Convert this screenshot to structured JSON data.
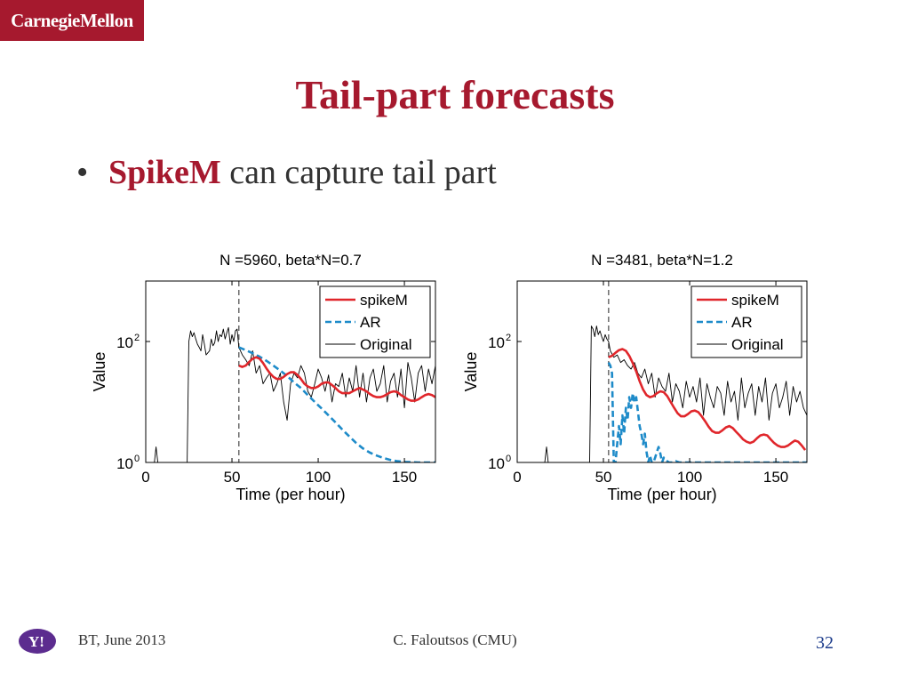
{
  "header": {
    "logo_text": "CarnegieMellon"
  },
  "slide": {
    "title": "Tail-part forecasts",
    "bullet": {
      "keyword": "SpikeM",
      "text": " can capture tail part"
    }
  },
  "footer": {
    "logo_text": "Y!",
    "left": "BT, June 2013",
    "center": "C. Faloutsos (CMU)",
    "page_number": "32"
  },
  "colors": {
    "brand": "#A6192E",
    "spikeM": "#E0262B",
    "AR": "#1E8BC9",
    "original": "#000000"
  },
  "chart_data": [
    {
      "type": "line",
      "title": "N =5960, beta*N=0.7",
      "xlabel": "Time (per hour)",
      "ylabel": "Value",
      "xlim": [
        0,
        168
      ],
      "ylim_log10": [
        0,
        3
      ],
      "yscale": "log",
      "xticks": [
        0,
        50,
        100,
        150
      ],
      "yticks_log10": [
        0,
        2
      ],
      "ytick_labels": [
        "10",
        "10"
      ],
      "ytick_exponents": [
        "0",
        "2"
      ],
      "legend_position": "top-right",
      "legend": [
        "spikeM",
        "AR",
        "Original"
      ],
      "vline_x": 54,
      "series": [
        {
          "name": "spikeM",
          "style": "solid",
          "x": [
            54,
            56,
            58,
            60,
            62,
            64,
            66,
            68,
            70,
            72,
            74,
            76,
            78,
            80,
            82,
            84,
            86,
            88,
            90,
            92,
            94,
            96,
            98,
            100,
            102,
            104,
            106,
            108,
            110,
            112,
            114,
            116,
            118,
            120,
            122,
            124,
            126,
            128,
            130,
            132,
            134,
            136,
            138,
            140,
            142,
            144,
            146,
            148,
            150,
            152,
            154,
            156,
            158,
            160,
            162,
            164,
            166,
            168
          ],
          "y": [
            40,
            38,
            40,
            46,
            52,
            55,
            52,
            44,
            36,
            30,
            26,
            24,
            24,
            26,
            29,
            31,
            31,
            28,
            24,
            20,
            18,
            17,
            17,
            18,
            20,
            21,
            21,
            19,
            17,
            15,
            14,
            14,
            14,
            15,
            16,
            17,
            16,
            15,
            13.5,
            12.5,
            12,
            12,
            12.5,
            13.5,
            14.5,
            15,
            14.5,
            13,
            12,
            11,
            10.5,
            10.5,
            11,
            12,
            13,
            13.5,
            13,
            12
          ]
        },
        {
          "name": "AR",
          "style": "dashed",
          "x": [
            54,
            58,
            62,
            66,
            70,
            74,
            78,
            82,
            86,
            90,
            94,
            98,
            102,
            106,
            110,
            114,
            118,
            122,
            126,
            130,
            134,
            138,
            142,
            146,
            150,
            154,
            158,
            162,
            166,
            168
          ],
          "y": [
            80,
            72,
            64,
            56,
            48,
            40,
            33,
            27,
            21,
            17,
            13,
            10,
            7.8,
            6,
            4.6,
            3.5,
            2.7,
            2.1,
            1.7,
            1.45,
            1.3,
            1.18,
            1.1,
            1.05,
            1.02,
            1.01,
            1.0,
            1.0,
            1.0,
            1.0
          ]
        },
        {
          "name": "Original",
          "style": "solid",
          "x": [
            0,
            3,
            5,
            6,
            7,
            8,
            10,
            15,
            20,
            22,
            24,
            25,
            26,
            27,
            28,
            29,
            30,
            31,
            32,
            33,
            34,
            35,
            36,
            37,
            38,
            39,
            40,
            41,
            42,
            43,
            44,
            45,
            46,
            47,
            48,
            49,
            50,
            51,
            52,
            53,
            54,
            56,
            58,
            60,
            62,
            64,
            66,
            68,
            70,
            72,
            74,
            76,
            78,
            80,
            82,
            84,
            86,
            88,
            90,
            92,
            94,
            96,
            98,
            100,
            102,
            104,
            106,
            108,
            110,
            112,
            114,
            116,
            118,
            120,
            122,
            124,
            126,
            128,
            130,
            132,
            134,
            136,
            138,
            140,
            142,
            144,
            146,
            148,
            150,
            152,
            154,
            156,
            158,
            160,
            162,
            164,
            166,
            168
          ],
          "y": [
            1,
            1,
            1,
            1.8,
            1,
            1,
            1,
            1,
            1,
            1,
            1,
            100,
            150,
            120,
            140,
            110,
            90,
            80,
            70,
            130,
            90,
            60,
            65,
            70,
            110,
            85,
            95,
            150,
            100,
            130,
            120,
            160,
            110,
            140,
            170,
            90,
            130,
            100,
            150,
            160,
            80,
            60,
            50,
            40,
            70,
            30,
            40,
            20,
            25,
            30,
            15,
            20,
            30,
            10,
            5,
            20,
            30,
            25,
            40,
            30,
            15,
            12,
            20,
            35,
            25,
            15,
            28,
            10,
            20,
            18,
            30,
            12,
            25,
            15,
            40,
            12,
            30,
            10,
            25,
            35,
            15,
            20,
            40,
            10,
            22,
            30,
            12,
            35,
            8,
            45,
            25,
            10,
            30,
            40,
            15,
            35,
            20,
            40
          ]
        }
      ]
    },
    {
      "type": "line",
      "title": "N =3481, beta*N=1.2",
      "xlabel": "Time (per hour)",
      "ylabel": "Value",
      "xlim": [
        0,
        168
      ],
      "ylim_log10": [
        0,
        3
      ],
      "yscale": "log",
      "xticks": [
        0,
        50,
        100,
        150
      ],
      "yticks_log10": [
        0,
        2
      ],
      "ytick_labels": [
        "10",
        "10"
      ],
      "ytick_exponents": [
        "0",
        "2"
      ],
      "legend_position": "top-right",
      "legend": [
        "spikeM",
        "AR",
        "Original"
      ],
      "vline_x": 53,
      "series": [
        {
          "name": "spikeM",
          "style": "solid",
          "x": [
            53,
            55,
            57,
            59,
            61,
            63,
            65,
            67,
            69,
            71,
            73,
            75,
            77,
            79,
            81,
            83,
            85,
            87,
            89,
            91,
            93,
            95,
            97,
            99,
            101,
            103,
            105,
            107,
            109,
            111,
            113,
            115,
            117,
            119,
            121,
            123,
            125,
            127,
            129,
            131,
            133,
            135,
            137,
            139,
            141,
            143,
            145,
            147,
            149,
            151,
            153,
            155,
            157,
            159,
            161,
            163,
            165,
            167
          ],
          "y": [
            55,
            58,
            65,
            72,
            75,
            70,
            58,
            44,
            32,
            22,
            16,
            13,
            12,
            12.5,
            14,
            15,
            14.5,
            12.5,
            10,
            8,
            6.5,
            5.8,
            5.8,
            6.3,
            7,
            7.2,
            6.8,
            5.8,
            4.8,
            3.9,
            3.3,
            3.1,
            3.1,
            3.4,
            3.8,
            4,
            3.7,
            3.2,
            2.8,
            2.4,
            2.2,
            2.1,
            2.2,
            2.5,
            2.8,
            2.9,
            2.8,
            2.4,
            2.1,
            1.9,
            1.8,
            1.8,
            1.9,
            2.1,
            2.3,
            2.2,
            1.9,
            1.6
          ]
        },
        {
          "name": "AR",
          "style": "dashed",
          "x": [
            53,
            54,
            55,
            56,
            57,
            58,
            59,
            60,
            61,
            62,
            63,
            64,
            65,
            66,
            67,
            68,
            69,
            70,
            71,
            72,
            73,
            74,
            75,
            76,
            77,
            78,
            79,
            80,
            81,
            82,
            83,
            84,
            85,
            86,
            88,
            90,
            92,
            94,
            96,
            100,
            105,
            110,
            120,
            130,
            140,
            150,
            160,
            168
          ],
          "y": [
            45,
            40,
            30,
            1,
            1,
            2,
            4,
            2,
            6,
            3,
            8,
            5,
            12,
            8,
            14,
            10,
            12,
            7,
            4,
            3,
            2,
            3,
            1.5,
            1,
            1.3,
            1,
            1,
            1.2,
            1.5,
            1.8,
            1.4,
            1,
            1.2,
            1.1,
            1,
            1,
            1.05,
            1,
            1,
            1,
            1,
            1,
            1,
            1,
            1,
            1,
            1,
            1
          ]
        },
        {
          "name": "Original",
          "style": "solid",
          "x": [
            0,
            10,
            15,
            16,
            17,
            18,
            20,
            30,
            40,
            42,
            43,
            44,
            45,
            46,
            47,
            48,
            49,
            50,
            51,
            52,
            53,
            54,
            56,
            58,
            60,
            62,
            64,
            66,
            68,
            70,
            72,
            74,
            76,
            78,
            80,
            82,
            84,
            86,
            88,
            90,
            92,
            94,
            96,
            98,
            100,
            102,
            104,
            106,
            108,
            110,
            112,
            114,
            116,
            118,
            120,
            122,
            124,
            126,
            128,
            130,
            132,
            134,
            136,
            138,
            140,
            142,
            144,
            146,
            148,
            150,
            152,
            154,
            156,
            158,
            160,
            162,
            164,
            166,
            168
          ],
          "y": [
            1,
            1,
            1,
            1,
            1.8,
            1,
            1,
            1,
            1,
            1,
            180,
            160,
            120,
            180,
            130,
            150,
            120,
            100,
            130,
            110,
            100,
            70,
            55,
            60,
            45,
            50,
            40,
            35,
            45,
            30,
            25,
            35,
            20,
            30,
            12,
            25,
            18,
            15,
            30,
            10,
            20,
            15,
            8,
            22,
            12,
            18,
            10,
            25,
            6,
            20,
            12,
            8,
            18,
            14,
            6,
            22,
            10,
            15,
            5,
            25,
            8,
            14,
            20,
            6,
            18,
            10,
            25,
            5,
            14,
            20,
            8,
            12,
            22,
            6,
            18,
            10,
            15,
            8,
            6
          ]
        }
      ]
    }
  ]
}
